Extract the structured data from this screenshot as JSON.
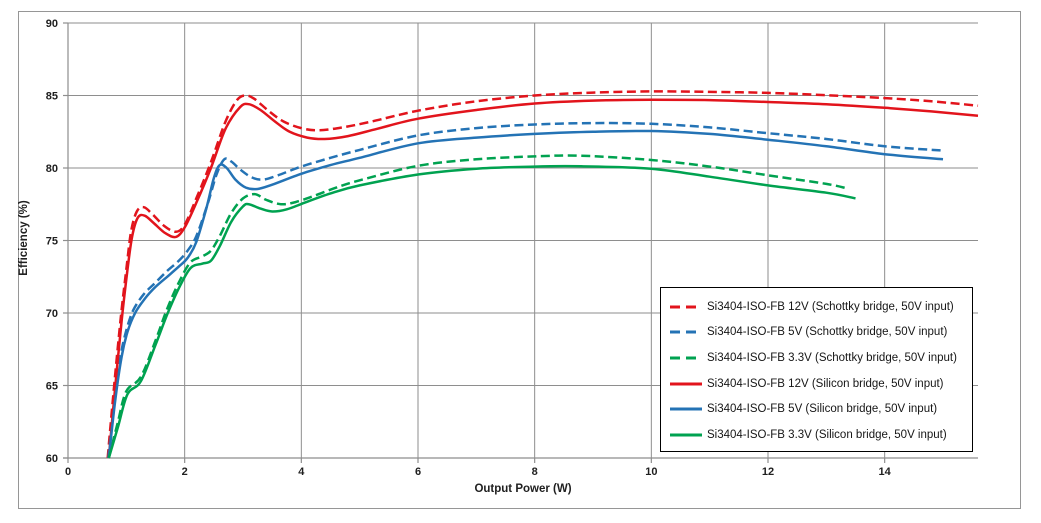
{
  "chart_data": {
    "type": "line",
    "title": "",
    "xlabel": "Output Power (W)",
    "ylabel": "Efficiency (%)",
    "xlim": [
      0,
      15.6
    ],
    "ylim": [
      60,
      90
    ],
    "x_ticks": [
      0,
      2,
      4,
      6,
      8,
      10,
      12,
      14
    ],
    "y_ticks": [
      60,
      65,
      70,
      75,
      80,
      85,
      90
    ],
    "grid": true,
    "legend_position": "inside right",
    "series": [
      {
        "name": "Si3404-ISO-FB 12V (Schottky bridge, 50V input)",
        "color": "#e2141c",
        "line_style": "dashed",
        "points": [
          [
            0.68,
            60
          ],
          [
            0.78,
            64.5
          ],
          [
            0.9,
            69.5
          ],
          [
            1.0,
            73.0
          ],
          [
            1.08,
            75.6
          ],
          [
            1.18,
            77.0
          ],
          [
            1.3,
            77.3
          ],
          [
            1.45,
            76.8
          ],
          [
            1.65,
            76.0
          ],
          [
            1.85,
            75.6
          ],
          [
            2.0,
            76.1
          ],
          [
            2.2,
            77.9
          ],
          [
            2.45,
            80.4
          ],
          [
            2.7,
            83.2
          ],
          [
            2.9,
            84.7
          ],
          [
            3.05,
            85.0
          ],
          [
            3.2,
            84.75
          ],
          [
            3.45,
            83.9
          ],
          [
            3.7,
            83.2
          ],
          [
            4.0,
            82.75
          ],
          [
            4.3,
            82.6
          ],
          [
            4.7,
            82.8
          ],
          [
            5.2,
            83.2
          ],
          [
            6.0,
            83.95
          ],
          [
            7.0,
            84.6
          ],
          [
            8.0,
            85.0
          ],
          [
            9.0,
            85.2
          ],
          [
            10.0,
            85.28
          ],
          [
            11.0,
            85.25
          ],
          [
            12.0,
            85.18
          ],
          [
            13.0,
            85.02
          ],
          [
            14.0,
            84.82
          ],
          [
            14.8,
            84.6
          ],
          [
            15.6,
            84.3
          ]
        ]
      },
      {
        "name": "Si3404-ISO-FB 5V (Schottky bridge, 50V input)",
        "color": "#2473b5",
        "line_style": "dashed",
        "points": [
          [
            0.69,
            60
          ],
          [
            0.8,
            64.0
          ],
          [
            0.9,
            67.0
          ],
          [
            1.0,
            68.8
          ],
          [
            1.12,
            70.2
          ],
          [
            1.3,
            71.3
          ],
          [
            1.5,
            72.1
          ],
          [
            1.7,
            72.9
          ],
          [
            1.9,
            73.6
          ],
          [
            2.05,
            74.3
          ],
          [
            2.2,
            75.3
          ],
          [
            2.4,
            77.6
          ],
          [
            2.55,
            79.6
          ],
          [
            2.68,
            80.6
          ],
          [
            2.8,
            80.45
          ],
          [
            2.95,
            79.9
          ],
          [
            3.15,
            79.35
          ],
          [
            3.35,
            79.2
          ],
          [
            3.6,
            79.5
          ],
          [
            4.0,
            80.1
          ],
          [
            4.5,
            80.7
          ],
          [
            5.0,
            81.25
          ],
          [
            6.0,
            82.25
          ],
          [
            7.0,
            82.75
          ],
          [
            8.0,
            83.0
          ],
          [
            9.0,
            83.1
          ],
          [
            10.0,
            83.05
          ],
          [
            11.0,
            82.8
          ],
          [
            12.0,
            82.4
          ],
          [
            13.0,
            82.0
          ],
          [
            14.0,
            81.5
          ],
          [
            15.0,
            81.2
          ]
        ]
      },
      {
        "name": "Si3404-ISO-FB 3.3V (Schottky bridge, 50V input)",
        "color": "#00a250",
        "line_style": "dashed",
        "points": [
          [
            0.7,
            60
          ],
          [
            0.85,
            62.4
          ],
          [
            1.0,
            64.6
          ],
          [
            1.25,
            65.6
          ],
          [
            1.5,
            68.1
          ],
          [
            1.7,
            70.3
          ],
          [
            1.9,
            72.1
          ],
          [
            2.1,
            73.5
          ],
          [
            2.3,
            73.9
          ],
          [
            2.45,
            74.3
          ],
          [
            2.6,
            75.3
          ],
          [
            2.8,
            76.9
          ],
          [
            3.0,
            77.9
          ],
          [
            3.2,
            78.2
          ],
          [
            3.4,
            77.8
          ],
          [
            3.65,
            77.5
          ],
          [
            3.9,
            77.65
          ],
          [
            4.2,
            78.05
          ],
          [
            4.6,
            78.65
          ],
          [
            5.0,
            79.15
          ],
          [
            6.0,
            80.15
          ],
          [
            7.0,
            80.6
          ],
          [
            8.0,
            80.8
          ],
          [
            8.8,
            80.85
          ],
          [
            10.0,
            80.55
          ],
          [
            11.0,
            80.1
          ],
          [
            12.0,
            79.5
          ],
          [
            13.0,
            78.9
          ],
          [
            13.35,
            78.6
          ]
        ]
      },
      {
        "name": "Si3404-ISO-FB 12V (Silicon bridge, 50V input)",
        "color": "#e2141c",
        "line_style": "solid",
        "points": [
          [
            0.7,
            60
          ],
          [
            0.8,
            64.5
          ],
          [
            0.92,
            69.5
          ],
          [
            1.02,
            73.0
          ],
          [
            1.1,
            75.3
          ],
          [
            1.2,
            76.6
          ],
          [
            1.32,
            76.7
          ],
          [
            1.47,
            76.2
          ],
          [
            1.67,
            75.5
          ],
          [
            1.85,
            75.25
          ],
          [
            2.0,
            75.9
          ],
          [
            2.2,
            77.6
          ],
          [
            2.45,
            80.0
          ],
          [
            2.7,
            82.7
          ],
          [
            2.95,
            84.2
          ],
          [
            3.1,
            84.4
          ],
          [
            3.3,
            84.0
          ],
          [
            3.55,
            83.2
          ],
          [
            3.8,
            82.5
          ],
          [
            4.1,
            82.1
          ],
          [
            4.4,
            82.0
          ],
          [
            4.8,
            82.2
          ],
          [
            5.3,
            82.7
          ],
          [
            6.0,
            83.4
          ],
          [
            7.0,
            84.0
          ],
          [
            8.0,
            84.45
          ],
          [
            9.0,
            84.65
          ],
          [
            10.0,
            84.7
          ],
          [
            11.0,
            84.68
          ],
          [
            12.0,
            84.55
          ],
          [
            13.0,
            84.4
          ],
          [
            14.0,
            84.15
          ],
          [
            14.8,
            83.9
          ],
          [
            15.6,
            83.6
          ]
        ]
      },
      {
        "name": "Si3404-ISO-FB 5V (Silicon bridge, 50V input)",
        "color": "#2473b5",
        "line_style": "solid",
        "points": [
          [
            0.7,
            60
          ],
          [
            0.81,
            64.0
          ],
          [
            0.92,
            67.0
          ],
          [
            1.02,
            68.7
          ],
          [
            1.15,
            70.0
          ],
          [
            1.32,
            71.0
          ],
          [
            1.5,
            71.8
          ],
          [
            1.7,
            72.5
          ],
          [
            1.9,
            73.2
          ],
          [
            2.05,
            73.8
          ],
          [
            2.2,
            74.9
          ],
          [
            2.37,
            77.2
          ],
          [
            2.5,
            79.3
          ],
          [
            2.6,
            80.2
          ],
          [
            2.72,
            80.0
          ],
          [
            2.87,
            79.2
          ],
          [
            3.05,
            78.65
          ],
          [
            3.25,
            78.55
          ],
          [
            3.5,
            78.85
          ],
          [
            4.0,
            79.6
          ],
          [
            4.5,
            80.2
          ],
          [
            5.0,
            80.7
          ],
          [
            6.0,
            81.7
          ],
          [
            7.0,
            82.1
          ],
          [
            8.0,
            82.35
          ],
          [
            9.0,
            82.5
          ],
          [
            10.0,
            82.55
          ],
          [
            11.0,
            82.35
          ],
          [
            12.0,
            81.95
          ],
          [
            13.0,
            81.5
          ],
          [
            14.0,
            80.95
          ],
          [
            15.0,
            80.6
          ]
        ]
      },
      {
        "name": "Si3404-ISO-FB 3.3V (Silicon bridge, 50V input)",
        "color": "#00a250",
        "line_style": "solid",
        "points": [
          [
            0.7,
            60
          ],
          [
            0.86,
            62.2
          ],
          [
            1.02,
            64.4
          ],
          [
            1.25,
            65.3
          ],
          [
            1.5,
            67.8
          ],
          [
            1.7,
            69.9
          ],
          [
            1.9,
            71.7
          ],
          [
            2.1,
            73.1
          ],
          [
            2.3,
            73.4
          ],
          [
            2.45,
            73.6
          ],
          [
            2.6,
            74.6
          ],
          [
            2.8,
            76.3
          ],
          [
            3.0,
            77.35
          ],
          [
            3.1,
            77.5
          ],
          [
            3.3,
            77.2
          ],
          [
            3.5,
            77.0
          ],
          [
            3.75,
            77.15
          ],
          [
            4.05,
            77.6
          ],
          [
            4.5,
            78.25
          ],
          [
            5.0,
            78.8
          ],
          [
            6.0,
            79.55
          ],
          [
            7.0,
            79.95
          ],
          [
            8.0,
            80.1
          ],
          [
            8.8,
            80.12
          ],
          [
            10.0,
            79.95
          ],
          [
            11.0,
            79.4
          ],
          [
            12.0,
            78.8
          ],
          [
            13.0,
            78.3
          ],
          [
            13.5,
            77.9
          ]
        ]
      }
    ]
  },
  "styles": {
    "grid_color": "#8e8e8e",
    "axis_color": "#8e8e8e",
    "text_color": "#202020",
    "legend_border_color": "#000000",
    "background_color": "#ffffff",
    "figure_border_color": "#969696"
  }
}
